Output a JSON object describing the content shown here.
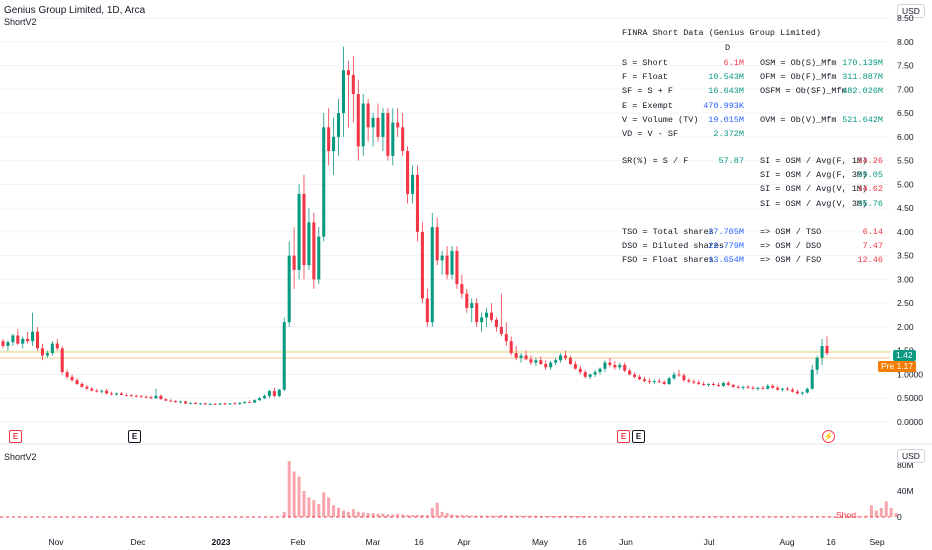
{
  "header": {
    "symbol_title": "Genius Group Limited, 1D, Arca",
    "indicator_label": "ShortV2",
    "lower_indicator_label": "ShortV2"
  },
  "currency_button": "USD",
  "lower_currency_button": "USD",
  "price_badges": {
    "last": "1.42",
    "premarket": "Pre 1.17",
    "colors": {
      "last": "#089981",
      "premarket": "#f57c00"
    }
  },
  "short_series_label": "Short",
  "event_markers": [
    {
      "icon": "earnings-icon",
      "glyph": "E",
      "color": "#f23645"
    },
    {
      "icon": "dividend-icon",
      "glyph": "E",
      "color": "#131722"
    },
    {
      "icon": "earnings-icon",
      "glyph": "E",
      "color": "#f23645"
    },
    {
      "icon": "dividend-icon",
      "glyph": "E",
      "color": "#131722"
    },
    {
      "icon": "lightning-icon",
      "glyph": "⚡",
      "color": "#f23645"
    }
  ],
  "finra_table": {
    "title": "FINRA Short Data (Genius Group Limited)",
    "period": "D",
    "left_rows": [
      {
        "label": "S = Short",
        "value": "6.1M",
        "color": "#f23645"
      },
      {
        "label": "F = Float",
        "value": "10.543M",
        "color": "#089981"
      },
      {
        "label": "SF = S + F",
        "value": "16.643M",
        "color": "#089981"
      },
      {
        "label": "E = Exempt",
        "value": "470.993K",
        "color": "#2962ff"
      },
      {
        "label": "V = Volume (TV)",
        "value": "19.015M",
        "color": "#2962ff"
      },
      {
        "label": "VD = V - SF",
        "value": "2.372M",
        "color": "#089981"
      }
    ],
    "right_rows": [
      {
        "label": "OSM = Ob(S)_Mfm",
        "value": "170.139M",
        "color": "#089981"
      },
      {
        "label": "OFM = Ob(F)_Mfm",
        "value": "311.887M",
        "color": "#089981"
      },
      {
        "label": "OSFM = Ob(SF)_Mfm",
        "value": "482.026M",
        "color": "#089981"
      },
      {
        "label": "",
        "value": "",
        "color": "#131722"
      },
      {
        "label": "OVM = Ob(V)_Mfm",
        "value": "521.642M",
        "color": "#089981"
      },
      {
        "label": "",
        "value": "",
        "color": "#131722"
      }
    ],
    "sr": {
      "label": "SR(%) = S / F",
      "value": "57.87",
      "color": "#089981"
    },
    "si_rows": [
      {
        "label": "SI = OSM / Avg(F, 1M)",
        "value": "24.26",
        "color": "#f23645"
      },
      {
        "label": "SI = OSM / Avg(F, 3M)",
        "value": "59.05",
        "color": "#089981"
      },
      {
        "label": "SI = OSM / Avg(V, 1M)",
        "value": "14.62",
        "color": "#f23645"
      },
      {
        "label": "SI = OSM / Avg(V, 3M)",
        "value": "35.76",
        "color": "#089981"
      }
    ],
    "share_rows": [
      {
        "label": "TSO = Total shares",
        "value": "27.705M",
        "ratio_label": "=> OSM / TSO",
        "ratio": "6.14",
        "color": "#2962ff",
        "ratio_color": "#f23645"
      },
      {
        "label": "DSO = Diluted shares",
        "value": "22.779M",
        "ratio_label": "=> OSM / DSO",
        "ratio": "7.47",
        "color": "#2962ff",
        "ratio_color": "#f23645"
      },
      {
        "label": "FSO = Float shares",
        "value": "13.654M",
        "ratio_label": "=> OSM / FSO",
        "ratio": "12.46",
        "color": "#2962ff",
        "ratio_color": "#f23645"
      }
    ]
  },
  "chart_data": {
    "type": "candlestick",
    "price_axis": {
      "ticks": [
        "8.50",
        "8.00",
        "7.50",
        "7.00",
        "6.50",
        "6.00",
        "5.50",
        "5.00",
        "4.50",
        "4.00",
        "3.50",
        "3.00",
        "2.50",
        "2.00",
        "1.50",
        "1.0000",
        "0.5000",
        "0.0000"
      ],
      "ylim": [
        0,
        8.5
      ]
    },
    "volume_axis": {
      "ticks": [
        "80M",
        "40M",
        "0"
      ],
      "ylim": [
        0,
        80
      ]
    },
    "time_axis": [
      "Nov",
      "Dec",
      "2023",
      "Feb",
      "Mar",
      "16",
      "Apr",
      "May",
      "16",
      "Jun",
      "Jul",
      "Aug",
      "16",
      "Sep"
    ],
    "colors": {
      "up": "#089981",
      "down": "#f23645",
      "short_bar": "#f7a6ad"
    },
    "candles": [
      [
        1.7,
        1.75,
        1.55,
        1.6
      ],
      [
        1.6,
        1.72,
        1.5,
        1.68
      ],
      [
        1.68,
        1.85,
        1.6,
        1.82
      ],
      [
        1.82,
        1.95,
        1.62,
        1.65
      ],
      [
        1.65,
        1.8,
        1.55,
        1.75
      ],
      [
        1.75,
        1.9,
        1.65,
        1.7
      ],
      [
        1.7,
        2.3,
        1.6,
        1.9
      ],
      [
        1.9,
        2.0,
        1.5,
        1.55
      ],
      [
        1.55,
        1.65,
        1.3,
        1.4
      ],
      [
        1.4,
        1.5,
        1.35,
        1.45
      ],
      [
        1.45,
        1.7,
        1.4,
        1.65
      ],
      [
        1.65,
        1.75,
        1.5,
        1.55
      ],
      [
        1.55,
        1.6,
        1.0,
        1.05
      ],
      [
        1.05,
        1.1,
        0.9,
        0.95
      ],
      [
        0.95,
        1.0,
        0.85,
        0.88
      ],
      [
        0.88,
        0.92,
        0.78,
        0.8
      ],
      [
        0.8,
        0.84,
        0.72,
        0.74
      ],
      [
        0.74,
        0.78,
        0.68,
        0.7
      ],
      [
        0.7,
        0.74,
        0.64,
        0.66
      ],
      [
        0.66,
        0.7,
        0.62,
        0.64
      ],
      [
        0.64,
        0.68,
        0.6,
        0.66
      ],
      [
        0.66,
        0.7,
        0.58,
        0.6
      ],
      [
        0.6,
        0.64,
        0.56,
        0.58
      ],
      [
        0.58,
        0.62,
        0.55,
        0.6
      ],
      [
        0.6,
        0.63,
        0.56,
        0.57
      ],
      [
        0.57,
        0.6,
        0.54,
        0.56
      ],
      [
        0.56,
        0.59,
        0.53,
        0.55
      ],
      [
        0.55,
        0.58,
        0.52,
        0.54
      ],
      [
        0.54,
        0.57,
        0.51,
        0.53
      ],
      [
        0.53,
        0.56,
        0.5,
        0.52
      ],
      [
        0.52,
        0.55,
        0.48,
        0.5
      ],
      [
        0.5,
        0.7,
        0.48,
        0.55
      ],
      [
        0.55,
        0.58,
        0.47,
        0.48
      ],
      [
        0.48,
        0.5,
        0.44,
        0.45
      ],
      [
        0.45,
        0.48,
        0.42,
        0.44
      ],
      [
        0.44,
        0.46,
        0.4,
        0.42
      ],
      [
        0.42,
        0.45,
        0.39,
        0.43
      ],
      [
        0.43,
        0.45,
        0.38,
        0.39
      ],
      [
        0.39,
        0.42,
        0.37,
        0.4
      ],
      [
        0.4,
        0.42,
        0.37,
        0.38
      ],
      [
        0.38,
        0.4,
        0.36,
        0.39
      ],
      [
        0.39,
        0.41,
        0.36,
        0.37
      ],
      [
        0.37,
        0.4,
        0.35,
        0.38
      ],
      [
        0.38,
        0.4,
        0.36,
        0.37
      ],
      [
        0.37,
        0.4,
        0.35,
        0.39
      ],
      [
        0.39,
        0.41,
        0.36,
        0.37
      ],
      [
        0.37,
        0.4,
        0.36,
        0.39
      ],
      [
        0.39,
        0.42,
        0.37,
        0.38
      ],
      [
        0.38,
        0.42,
        0.36,
        0.4
      ],
      [
        0.4,
        0.44,
        0.38,
        0.42
      ],
      [
        0.42,
        0.46,
        0.4,
        0.41
      ],
      [
        0.41,
        0.48,
        0.4,
        0.46
      ],
      [
        0.46,
        0.52,
        0.44,
        0.5
      ],
      [
        0.5,
        0.58,
        0.48,
        0.55
      ],
      [
        0.55,
        0.68,
        0.5,
        0.65
      ],
      [
        0.65,
        0.72,
        0.52,
        0.55
      ],
      [
        0.55,
        0.7,
        0.52,
        0.68
      ],
      [
        0.68,
        2.2,
        0.65,
        2.1
      ],
      [
        2.1,
        3.8,
        2.0,
        3.5
      ],
      [
        3.5,
        4.1,
        2.8,
        3.2
      ],
      [
        3.2,
        5.0,
        3.0,
        4.8
      ],
      [
        4.8,
        5.2,
        3.0,
        3.3
      ],
      [
        3.3,
        4.5,
        3.2,
        4.2
      ],
      [
        4.2,
        4.4,
        2.8,
        3.0
      ],
      [
        3.0,
        4.1,
        2.9,
        3.9
      ],
      [
        3.9,
        6.5,
        3.8,
        6.2
      ],
      [
        6.2,
        6.6,
        5.4,
        5.7
      ],
      [
        5.7,
        6.4,
        5.2,
        6.0
      ],
      [
        6.0,
        6.8,
        5.6,
        6.5
      ],
      [
        6.5,
        7.9,
        6.0,
        7.4
      ],
      [
        7.4,
        7.6,
        6.2,
        7.3
      ],
      [
        7.3,
        7.7,
        6.3,
        6.9
      ],
      [
        6.9,
        7.2,
        5.5,
        5.8
      ],
      [
        5.8,
        6.9,
        5.6,
        6.7
      ],
      [
        6.7,
        6.8,
        5.9,
        6.2
      ],
      [
        6.2,
        6.5,
        5.8,
        6.4
      ],
      [
        6.4,
        6.7,
        5.9,
        6.0
      ],
      [
        6.0,
        6.6,
        5.7,
        6.5
      ],
      [
        6.5,
        6.6,
        5.5,
        5.6
      ],
      [
        5.6,
        6.6,
        5.4,
        6.3
      ],
      [
        6.3,
        6.6,
        6.0,
        6.2
      ],
      [
        6.2,
        6.5,
        5.6,
        5.7
      ],
      [
        5.7,
        5.8,
        4.6,
        4.8
      ],
      [
        4.8,
        5.4,
        4.6,
        5.2
      ],
      [
        5.2,
        5.4,
        3.8,
        4.0
      ],
      [
        4.0,
        4.2,
        2.5,
        2.6
      ],
      [
        2.6,
        2.8,
        2.0,
        2.1
      ],
      [
        2.1,
        4.4,
        2.0,
        4.1
      ],
      [
        4.1,
        4.3,
        3.3,
        3.4
      ],
      [
        3.4,
        3.6,
        3.1,
        3.5
      ],
      [
        3.5,
        3.7,
        3.0,
        3.1
      ],
      [
        3.1,
        3.7,
        3.0,
        3.6
      ],
      [
        3.6,
        3.7,
        2.8,
        2.9
      ],
      [
        2.9,
        3.1,
        2.6,
        2.7
      ],
      [
        2.7,
        2.8,
        2.3,
        2.4
      ],
      [
        2.4,
        2.6,
        2.1,
        2.5
      ],
      [
        2.5,
        2.6,
        2.0,
        2.1
      ],
      [
        2.1,
        2.3,
        1.9,
        2.2
      ],
      [
        2.2,
        2.4,
        2.0,
        2.3
      ],
      [
        2.3,
        2.5,
        2.1,
        2.15
      ],
      [
        2.15,
        2.2,
        1.9,
        2.0
      ],
      [
        2.0,
        2.7,
        1.8,
        1.85
      ],
      [
        1.85,
        2.1,
        1.6,
        1.7
      ],
      [
        1.7,
        1.8,
        1.4,
        1.45
      ],
      [
        1.45,
        1.6,
        1.3,
        1.35
      ],
      [
        1.35,
        1.45,
        1.25,
        1.4
      ],
      [
        1.4,
        1.5,
        1.3,
        1.32
      ],
      [
        1.32,
        1.4,
        1.2,
        1.25
      ],
      [
        1.25,
        1.35,
        1.18,
        1.3
      ],
      [
        1.3,
        1.38,
        1.2,
        1.22
      ],
      [
        1.22,
        1.3,
        1.1,
        1.15
      ],
      [
        1.15,
        1.28,
        1.1,
        1.25
      ],
      [
        1.25,
        1.35,
        1.2,
        1.3
      ],
      [
        1.3,
        1.45,
        1.25,
        1.4
      ],
      [
        1.4,
        1.5,
        1.3,
        1.35
      ],
      [
        1.35,
        1.4,
        1.2,
        1.22
      ],
      [
        1.22,
        1.28,
        1.1,
        1.12
      ],
      [
        1.12,
        1.18,
        1.0,
        1.05
      ],
      [
        1.05,
        1.1,
        0.92,
        0.95
      ],
      [
        0.95,
        1.02,
        0.9,
        1.0
      ],
      [
        1.0,
        1.1,
        0.95,
        1.05
      ],
      [
        1.05,
        1.15,
        1.0,
        1.12
      ],
      [
        1.12,
        1.3,
        1.05,
        1.25
      ],
      [
        1.25,
        1.35,
        1.15,
        1.2
      ],
      [
        1.2,
        1.28,
        1.1,
        1.15
      ],
      [
        1.15,
        1.25,
        1.1,
        1.2
      ],
      [
        1.2,
        1.25,
        1.05,
        1.08
      ],
      [
        1.08,
        1.12,
        0.98,
        1.0
      ],
      [
        1.0,
        1.05,
        0.92,
        0.95
      ],
      [
        0.95,
        1.0,
        0.88,
        0.9
      ],
      [
        0.9,
        0.95,
        0.84,
        0.86
      ],
      [
        0.86,
        0.92,
        0.8,
        0.84
      ],
      [
        0.84,
        0.9,
        0.8,
        0.86
      ],
      [
        0.86,
        0.92,
        0.82,
        0.84
      ],
      [
        0.84,
        0.88,
        0.78,
        0.8
      ],
      [
        0.8,
        0.95,
        0.78,
        0.92
      ],
      [
        0.92,
        1.05,
        0.88,
        1.0
      ],
      [
        1.0,
        1.1,
        0.95,
        0.98
      ],
      [
        0.98,
        1.02,
        0.85,
        0.88
      ],
      [
        0.88,
        0.92,
        0.82,
        0.85
      ],
      [
        0.85,
        0.9,
        0.8,
        0.83
      ],
      [
        0.83,
        0.88,
        0.78,
        0.8
      ],
      [
        0.8,
        0.85,
        0.76,
        0.78
      ],
      [
        0.78,
        0.82,
        0.74,
        0.8
      ],
      [
        0.8,
        0.84,
        0.76,
        0.78
      ],
      [
        0.78,
        0.82,
        0.74,
        0.76
      ],
      [
        0.76,
        0.85,
        0.74,
        0.82
      ],
      [
        0.82,
        0.86,
        0.76,
        0.78
      ],
      [
        0.78,
        0.8,
        0.72,
        0.74
      ],
      [
        0.74,
        0.78,
        0.7,
        0.72
      ],
      [
        0.72,
        0.76,
        0.68,
        0.74
      ],
      [
        0.74,
        0.78,
        0.7,
        0.72
      ],
      [
        0.72,
        0.76,
        0.68,
        0.7
      ],
      [
        0.7,
        0.74,
        0.66,
        0.72
      ],
      [
        0.72,
        0.76,
        0.68,
        0.7
      ],
      [
        0.7,
        0.8,
        0.68,
        0.76
      ],
      [
        0.76,
        0.8,
        0.7,
        0.72
      ],
      [
        0.72,
        0.76,
        0.66,
        0.68
      ],
      [
        0.68,
        0.72,
        0.64,
        0.7
      ],
      [
        0.7,
        0.74,
        0.66,
        0.68
      ],
      [
        0.68,
        0.72,
        0.62,
        0.64
      ],
      [
        0.64,
        0.68,
        0.58,
        0.6
      ],
      [
        0.6,
        0.64,
        0.56,
        0.62
      ],
      [
        0.62,
        0.72,
        0.6,
        0.7
      ],
      [
        0.7,
        1.2,
        0.68,
        1.1
      ],
      [
        1.1,
        1.4,
        1.0,
        1.35
      ],
      [
        1.35,
        1.75,
        1.2,
        1.6
      ],
      [
        1.6,
        1.8,
        1.4,
        1.45
      ]
    ],
    "short_volumes": [
      0.3,
      0.3,
      0.4,
      0.3,
      0.3,
      0.3,
      0.5,
      0.4,
      0.3,
      0.3,
      0.3,
      0.3,
      0.5,
      0.3,
      0.3,
      0.3,
      0.2,
      0.2,
      0.2,
      0.2,
      0.2,
      0.2,
      0.2,
      0.2,
      0.2,
      0.2,
      0.2,
      0.2,
      0.2,
      0.2,
      0.2,
      0.4,
      0.2,
      0.2,
      0.2,
      0.2,
      0.2,
      0.2,
      0.2,
      0.2,
      0.2,
      0.2,
      0.2,
      0.2,
      0.2,
      0.2,
      0.2,
      0.2,
      0.2,
      0.2,
      0.2,
      0.2,
      0.3,
      0.3,
      0.5,
      0.4,
      0.6,
      8,
      86,
      70,
      62,
      40,
      30,
      26,
      20,
      38,
      30,
      18,
      14,
      10,
      8,
      12,
      8,
      7,
      6,
      6,
      5,
      5,
      4,
      4,
      5,
      4,
      3,
      3,
      3,
      3,
      3,
      14,
      22,
      8,
      6,
      4,
      3,
      3,
      3,
      2,
      2,
      2,
      2,
      2,
      2,
      3,
      2,
      2,
      2,
      2,
      2,
      2,
      2,
      1.5,
      1.5,
      1.5,
      1.5,
      1.5,
      2,
      1.5,
      1.5,
      1.5,
      1.5,
      1,
      1,
      1,
      1,
      1,
      1,
      1,
      1,
      1,
      1,
      1,
      1,
      1,
      1,
      1,
      1,
      1,
      1,
      1,
      1,
      1,
      1,
      1,
      1,
      1,
      1,
      1,
      1,
      1,
      1,
      1,
      1,
      1,
      1,
      1,
      1,
      1,
      1,
      1,
      1,
      1,
      1,
      1,
      1,
      1,
      1,
      1,
      1,
      1,
      1,
      1,
      1,
      1,
      1,
      1,
      1,
      2,
      18,
      10,
      14,
      24,
      14,
      6
    ]
  }
}
